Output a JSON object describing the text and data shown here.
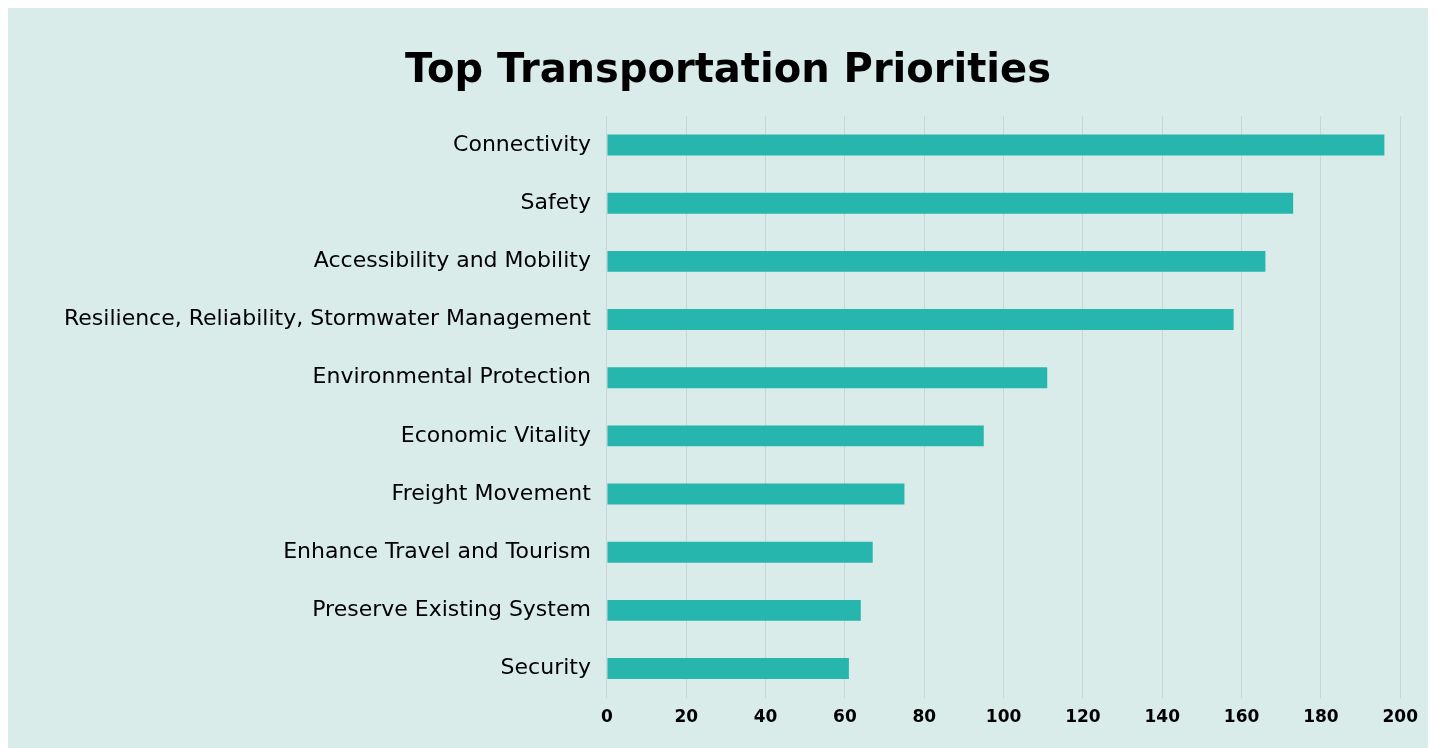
{
  "chart_data": {
    "type": "bar",
    "orientation": "horizontal",
    "title": "Top Transportation Priorities",
    "categories": [
      "Connectivity",
      "Safety",
      "Accessibility and Mobility",
      "Resilience, Reliability, Stormwater Management",
      "Environmental Protection",
      "Economic Vitality",
      "Freight Movement",
      "Enhance Travel and Tourism",
      "Preserve Existing System",
      "Security"
    ],
    "values": [
      196,
      173,
      166,
      158,
      111,
      95,
      75,
      67,
      64,
      61
    ],
    "color": "#26b6ad",
    "xlim": [
      0,
      200
    ],
    "xticks": [
      0,
      20,
      40,
      60,
      80,
      100,
      120,
      140,
      160,
      180,
      200
    ],
    "grid": "x",
    "legend": false
  }
}
